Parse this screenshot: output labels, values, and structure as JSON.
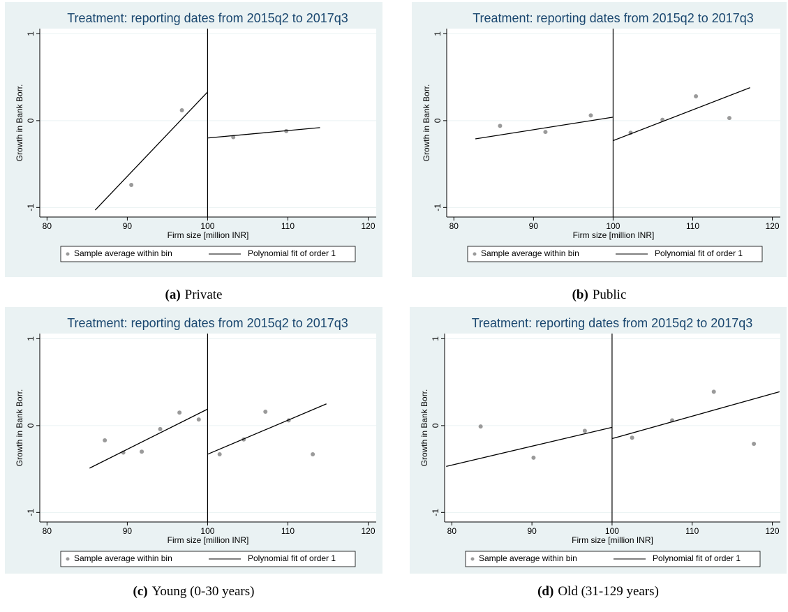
{
  "chart_data": [
    {
      "type": "scatter",
      "title": "Treatment: reporting dates from 2015q2 to 2017q3",
      "xlabel": "Firm size [million INR]",
      "ylabel": "Growth in Bank Borr.",
      "caption_label": "(a)",
      "caption": "Private",
      "cutoff": 100,
      "xlim": [
        79.1,
        121
      ],
      "ylim": [
        -1.11,
        1.06
      ],
      "xticks": [
        80,
        90,
        100,
        110,
        120
      ],
      "yticks": [
        -1,
        0,
        1
      ],
      "grid": true,
      "series": [
        {
          "name": "Sample average within bin",
          "color": "#9a9a9a",
          "x": [
            90.5,
            96.8,
            103.2,
            109.8
          ],
          "values": [
            -0.74,
            0.12,
            -0.19,
            -0.12
          ]
        },
        {
          "name": "Polynomial fit of order 1",
          "color": "#000000",
          "segments": [
            {
              "x": [
                86,
                100
              ],
              "values": [
                -1.03,
                0.33
              ]
            },
            {
              "x": [
                100,
                114
              ],
              "values": [
                -0.2,
                -0.08
              ]
            }
          ]
        }
      ]
    },
    {
      "type": "scatter",
      "title": "Treatment: reporting dates from 2015q2 to 2017q3",
      "xlabel": "Firm size [million INR]",
      "ylabel": "Growth in Bank Borr.",
      "caption_label": "(b)",
      "caption": "Public",
      "cutoff": 100,
      "xlim": [
        79.1,
        121
      ],
      "ylim": [
        -1.11,
        1.06
      ],
      "xticks": [
        80,
        90,
        100,
        110,
        120
      ],
      "yticks": [
        -1,
        0,
        1
      ],
      "grid": true,
      "series": [
        {
          "name": "Sample average within bin",
          "color": "#9a9a9a",
          "x": [
            85.8,
            91.5,
            97.2,
            102.2,
            106.2,
            110.4,
            114.6
          ],
          "values": [
            -0.06,
            -0.13,
            0.06,
            -0.14,
            0.01,
            0.28,
            0.03
          ]
        },
        {
          "name": "Polynomial fit of order 1",
          "color": "#000000",
          "segments": [
            {
              "x": [
                82.7,
                100
              ],
              "values": [
                -0.21,
                0.04
              ]
            },
            {
              "x": [
                100,
                117.2
              ],
              "values": [
                -0.23,
                0.38
              ]
            }
          ]
        }
      ]
    },
    {
      "type": "scatter",
      "title": "Treatment: reporting dates from 2015q2 to 2017q3",
      "xlabel": "Firm size [million INR]",
      "ylabel": "Growth in Bank Borr.",
      "caption_label": "(c)",
      "caption": "Young (0-30 years)",
      "cutoff": 100,
      "xlim": [
        79.1,
        121
      ],
      "ylim": [
        -1.11,
        1.06
      ],
      "xticks": [
        80,
        90,
        100,
        110,
        120
      ],
      "yticks": [
        -1,
        0,
        1
      ],
      "grid": true,
      "series": [
        {
          "name": "Sample average within bin",
          "color": "#9a9a9a",
          "x": [
            87.2,
            89.5,
            91.8,
            94.1,
            96.5,
            98.9,
            101.5,
            104.5,
            107.2,
            110.1,
            113.1
          ],
          "values": [
            -0.17,
            -0.31,
            -0.3,
            -0.04,
            0.15,
            0.07,
            -0.33,
            -0.16,
            0.16,
            0.06,
            -0.33
          ]
        },
        {
          "name": "Polynomial fit of order 1",
          "color": "#000000",
          "segments": [
            {
              "x": [
                85.3,
                100
              ],
              "values": [
                -0.49,
                0.19
              ]
            },
            {
              "x": [
                100,
                114.8
              ],
              "values": [
                -0.33,
                0.25
              ]
            }
          ]
        }
      ]
    },
    {
      "type": "scatter",
      "title": "Treatment: reporting dates from 2015q2 to 2017q3",
      "xlabel": "Firm size [million INR]",
      "ylabel": "Growth in Bank Borr.",
      "caption_label": "(d)",
      "caption": "Old (31-129 years)",
      "cutoff": 100,
      "xlim": [
        79.1,
        121
      ],
      "ylim": [
        -1.11,
        1.06
      ],
      "xticks": [
        80,
        90,
        100,
        110,
        120
      ],
      "yticks": [
        -1,
        0,
        1
      ],
      "grid": true,
      "series": [
        {
          "name": "Sample average within bin",
          "color": "#9a9a9a",
          "x": [
            83.6,
            90.2,
            96.6,
            102.5,
            107.5,
            112.7,
            117.7
          ],
          "values": [
            -0.01,
            -0.37,
            -0.06,
            -0.14,
            0.06,
            0.39,
            -0.21
          ]
        },
        {
          "name": "Polynomial fit of order 1",
          "color": "#000000",
          "segments": [
            {
              "x": [
                79.3,
                100
              ],
              "values": [
                -0.47,
                -0.02
              ]
            },
            {
              "x": [
                100,
                120.9
              ],
              "values": [
                -0.15,
                0.39
              ]
            }
          ]
        }
      ]
    }
  ]
}
